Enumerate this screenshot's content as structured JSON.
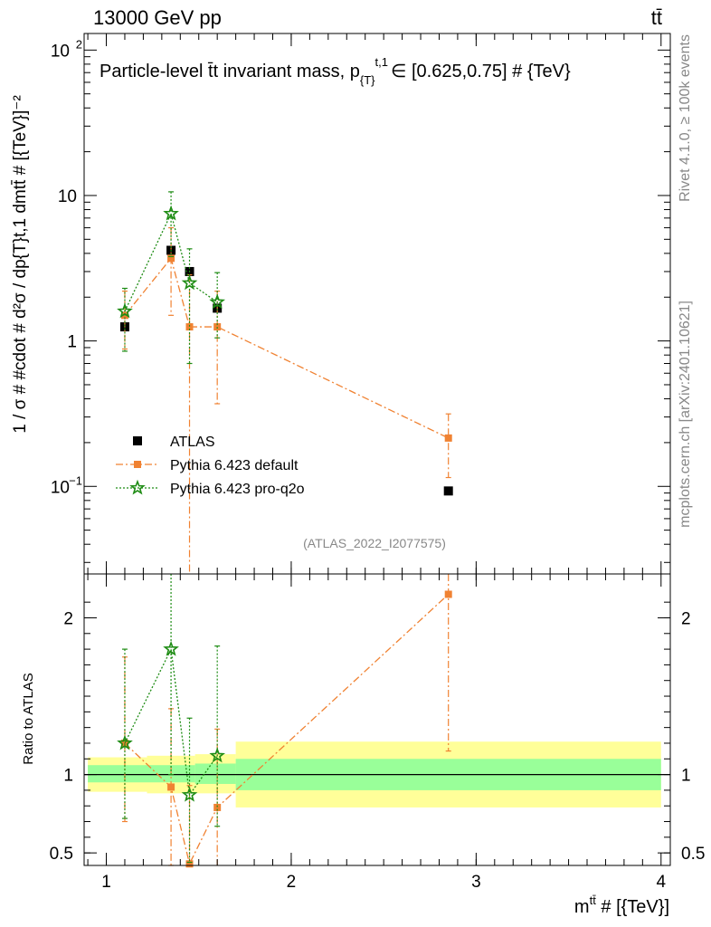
{
  "header": {
    "energy_label": "13000 GeV pp",
    "process_label": "tt̄"
  },
  "side_labels": {
    "rivet": "Rivet 4.1.0, ≥ 100k events",
    "mcplots": "mcplots.cern.ch [arXiv:2401.10621]"
  },
  "chart_data": [
    {
      "type": "scatter",
      "title": "Particle-level t̄t invariant mass, p_{T}^{t,1} ∈ [0.625,0.75] # {TeV}",
      "title_parts": {
        "main": "Particle-level t̄t invariant mass, p",
        "sub": "{T}",
        "sup": "t,1",
        "range": "∈ [0.625,0.75] # {TeV}"
      },
      "watermark": "(ATLAS_2022_I2077575)",
      "ylabel": "1 / σ # #cdot # d²σ / dp_{T}^{t,1} dm^{t̄t} # [{TeV}]⁻²",
      "ylabel_display": "1 / σ # #cdot # d²σ / dp{T}t,1 dmtt̄ # [{TeV}]⁻²",
      "yscale": "log",
      "ylim": [
        0.025,
        130
      ],
      "xlim": [
        0.88,
        4.05
      ],
      "y_ticks": [
        {
          "value": 0.1,
          "base": "10",
          "exp": "−1"
        },
        {
          "value": 1,
          "base": "1",
          "exp": ""
        },
        {
          "value": 10,
          "base": "10",
          "exp": ""
        },
        {
          "value": 100,
          "base": "10",
          "exp": "2"
        }
      ],
      "legend_position": "middle-left",
      "series": [
        {
          "name": "ATLAS",
          "color": "#000000",
          "marker": "square",
          "x": [
            1.1,
            1.35,
            1.45,
            1.6,
            2.85
          ],
          "y": [
            1.25,
            4.2,
            3.0,
            1.68,
            0.093
          ]
        },
        {
          "name": "Pythia 6.423 default",
          "color": "#f08232",
          "marker": "square",
          "x": [
            1.1,
            1.35,
            1.45,
            1.6,
            2.85
          ],
          "y": [
            1.5,
            3.7,
            1.25,
            1.25,
            0.215
          ],
          "err_lo": [
            0.62,
            2.2,
            1.23,
            0.88,
            0.1
          ],
          "err_hi": [
            0.7,
            2.3,
            1.6,
            0.95,
            0.1
          ]
        },
        {
          "name": "Pythia 6.423 pro-q2o",
          "color": "#1e8c14",
          "marker": "star",
          "x": [
            1.1,
            1.35,
            1.45,
            1.6
          ],
          "y": [
            1.6,
            7.5,
            2.5,
            1.85
          ],
          "err_lo": [
            0.75,
            3.7,
            1.8,
            0.8
          ],
          "err_hi": [
            0.7,
            3.1,
            1.8,
            1.1
          ]
        }
      ]
    },
    {
      "type": "scatter",
      "title": "Ratio to ATLAS",
      "xlabel": "m^{t̄t} # [{TeV}]",
      "xlabel_parts": {
        "main": "m",
        "sup": "tt̄",
        "rest": " # [{TeV}]"
      },
      "ylabel": "Ratio to ATLAS",
      "ylim": [
        0.42,
        2.28
      ],
      "xlim": [
        0.88,
        4.05
      ],
      "x_ticks": [
        1,
        2,
        3,
        4
      ],
      "y_ticks": [
        0.5,
        1,
        2
      ],
      "reference_line": 1,
      "bands": [
        {
          "x": [
            0.9,
            1.22
          ],
          "inner": [
            0.95,
            1.06
          ],
          "outer": [
            0.89,
            1.11
          ]
        },
        {
          "x": [
            1.22,
            1.48
          ],
          "inner": [
            0.95,
            1.06
          ],
          "outer": [
            0.88,
            1.12
          ]
        },
        {
          "x": [
            1.48,
            1.7
          ],
          "inner": [
            0.94,
            1.07
          ],
          "outer": [
            0.88,
            1.13
          ]
        },
        {
          "x": [
            1.7,
            4.0
          ],
          "inner": [
            0.9,
            1.1
          ],
          "outer": [
            0.79,
            1.21
          ]
        }
      ],
      "band_colors": {
        "inner": "#99ff99",
        "outer": "#ffff99"
      },
      "series": [
        {
          "name": "Pythia 6.423 default",
          "color": "#f08232",
          "marker": "square",
          "x": [
            1.1,
            1.35,
            1.45,
            1.6,
            2.85
          ],
          "y": [
            1.2,
            0.92,
            0.43,
            0.79,
            2.15
          ],
          "err_lo": [
            0.5,
            0.5,
            0.2,
            0.4,
            1.0
          ],
          "err_hi": [
            0.55,
            0.5,
            0.5,
            0.5,
            0.15
          ]
        },
        {
          "name": "Pythia 6.423 pro-q2o",
          "color": "#1e8c14",
          "marker": "star",
          "x": [
            1.1,
            1.35,
            1.45,
            1.6
          ],
          "y": [
            1.2,
            1.8,
            0.87,
            1.12
          ],
          "err_lo": [
            0.48,
            0.8,
            0.43,
            0.45
          ],
          "err_hi": [
            0.6,
            0.5,
            0.49,
            0.7
          ]
        }
      ]
    }
  ]
}
